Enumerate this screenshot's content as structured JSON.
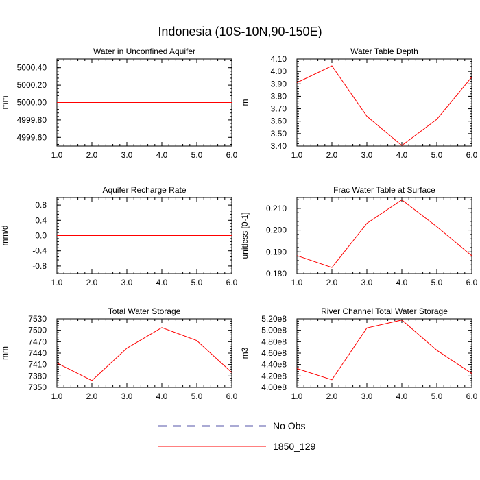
{
  "figure_title": "Indonesia (10S-10N,90-150E)",
  "legend": [
    {
      "label": "No Obs",
      "color": "#5555aa",
      "style": "dashed"
    },
    {
      "label": "1850_129",
      "color": "#ff0000",
      "style": "solid"
    }
  ],
  "chart_data": [
    {
      "type": "line",
      "title": "Water in Unconfined Aquifer",
      "ylabel": "mm",
      "xlabel": "",
      "xlim": [
        1,
        6
      ],
      "ylim": [
        4999.5,
        5000.5
      ],
      "xticks": [
        1,
        2,
        3,
        4,
        5,
        6
      ],
      "xtick_labels": [
        "1.0",
        "2.0",
        "3.0",
        "4.0",
        "5.0",
        "6.0"
      ],
      "yticks": [
        4999.6,
        4999.8,
        5000.0,
        5000.2,
        5000.4
      ],
      "ytick_labels": [
        "4999.60",
        "4999.80",
        "5000.00",
        "5000.20",
        "5000.40"
      ],
      "series": [
        {
          "name": "1850_129",
          "color": "#ff0000",
          "x": [
            1,
            2,
            3,
            4,
            5,
            6
          ],
          "values": [
            5000,
            5000,
            5000,
            5000,
            5000,
            5000
          ]
        }
      ]
    },
    {
      "type": "line",
      "title": "Water Table Depth",
      "ylabel": "m",
      "xlabel": "",
      "xlim": [
        1,
        6
      ],
      "ylim": [
        3.4,
        4.1
      ],
      "xticks": [
        1,
        2,
        3,
        4,
        5,
        6
      ],
      "xtick_labels": [
        "1.0",
        "2.0",
        "3.0",
        "4.0",
        "5.0",
        "6.0"
      ],
      "yticks": [
        3.4,
        3.5,
        3.6,
        3.7,
        3.8,
        3.9,
        4.0,
        4.1
      ],
      "ytick_labels": [
        "3.40",
        "3.50",
        "3.60",
        "3.70",
        "3.80",
        "3.90",
        "4.00",
        "4.10"
      ],
      "series": [
        {
          "name": "1850_129",
          "color": "#ff0000",
          "x": [
            1,
            2,
            3,
            4,
            5,
            6
          ],
          "values": [
            3.91,
            4.045,
            3.64,
            3.405,
            3.615,
            3.955
          ]
        }
      ]
    },
    {
      "type": "line",
      "title": "Aquifer Recharge Rate",
      "ylabel": "mm/d",
      "xlabel": "",
      "xlim": [
        1,
        6
      ],
      "ylim": [
        -1.0,
        1.0
      ],
      "xticks": [
        1,
        2,
        3,
        4,
        5,
        6
      ],
      "xtick_labels": [
        "1.0",
        "2.0",
        "3.0",
        "4.0",
        "5.0",
        "6.0"
      ],
      "yticks": [
        -0.8,
        -0.4,
        0.0,
        0.4,
        0.8
      ],
      "ytick_labels": [
        "-0.8",
        "-0.4",
        "0.0",
        "0.4",
        "0.8"
      ],
      "series": [
        {
          "name": "1850_129",
          "color": "#ff0000",
          "x": [
            1,
            2,
            3,
            4,
            5,
            6
          ],
          "values": [
            0,
            0,
            0,
            0,
            0,
            0
          ]
        }
      ]
    },
    {
      "type": "line",
      "title": "Frac Water Table at Surface",
      "ylabel": "unitless [0-1]",
      "xlabel": "",
      "xlim": [
        1,
        6
      ],
      "ylim": [
        0.18,
        0.215
      ],
      "xticks": [
        1,
        2,
        3,
        4,
        5,
        6
      ],
      "xtick_labels": [
        "1.0",
        "2.0",
        "3.0",
        "4.0",
        "5.0",
        "6.0"
      ],
      "yticks": [
        0.18,
        0.19,
        0.2,
        0.21
      ],
      "ytick_labels": [
        "0.180",
        "0.190",
        "0.200",
        "0.210"
      ],
      "series": [
        {
          "name": "1850_129",
          "color": "#ff0000",
          "x": [
            1,
            2,
            3,
            4,
            5,
            6
          ],
          "values": [
            0.1883,
            0.1828,
            0.2031,
            0.2139,
            0.2016,
            0.1882
          ]
        }
      ]
    },
    {
      "type": "line",
      "title": "Total Water Storage",
      "ylabel": "mm",
      "xlabel": "",
      "xlim": [
        1,
        6
      ],
      "ylim": [
        7350,
        7530
      ],
      "xticks": [
        1,
        2,
        3,
        4,
        5,
        6
      ],
      "xtick_labels": [
        "1.0",
        "2.0",
        "3.0",
        "4.0",
        "5.0",
        "6.0"
      ],
      "yticks": [
        7350,
        7380,
        7410,
        7440,
        7470,
        7500,
        7530
      ],
      "ytick_labels": [
        "7350",
        "7380",
        "7410",
        "7440",
        "7470",
        "7500",
        "7530"
      ],
      "series": [
        {
          "name": "1850_129",
          "color": "#ff0000",
          "x": [
            1,
            2,
            3,
            4,
            5,
            6
          ],
          "values": [
            7414,
            7368,
            7453,
            7507,
            7473,
            7389
          ]
        }
      ]
    },
    {
      "type": "line",
      "title": "River Channel Total Water Storage",
      "ylabel": "m3",
      "xlabel": "",
      "xlim": [
        1,
        6
      ],
      "ylim": [
        400000000,
        520000000
      ],
      "xticks": [
        1,
        2,
        3,
        4,
        5,
        6
      ],
      "xtick_labels": [
        "1.0",
        "2.0",
        "3.0",
        "4.0",
        "5.0",
        "6.0"
      ],
      "yticks": [
        400000000,
        420000000,
        440000000,
        460000000,
        480000000,
        500000000,
        520000000
      ],
      "ytick_labels": [
        "4.00e8",
        "4.20e8",
        "4.40e8",
        "4.60e8",
        "4.80e8",
        "5.00e8",
        "5.20e8"
      ],
      "series": [
        {
          "name": "1850_129",
          "color": "#ff0000",
          "x": [
            1,
            2,
            3,
            4,
            5,
            6
          ],
          "values": [
            433000000,
            413500000,
            504000000,
            518000000,
            465000000,
            424500000
          ]
        }
      ]
    }
  ]
}
